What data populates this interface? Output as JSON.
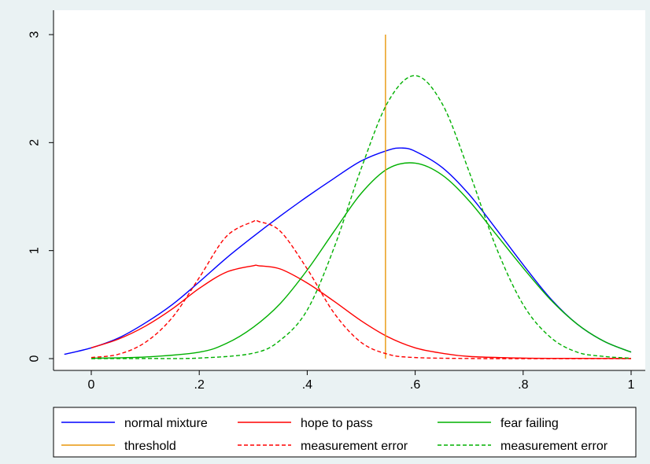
{
  "chart_data": {
    "type": "line",
    "title": "",
    "xlabel": "",
    "ylabel": "",
    "xlim": [
      -0.05,
      1.0
    ],
    "ylim": [
      0,
      3
    ],
    "x_ticks": [
      {
        "value": 0,
        "label": "0"
      },
      {
        "value": 0.2,
        "label": ".2"
      },
      {
        "value": 0.4,
        "label": ".4"
      },
      {
        "value": 0.6,
        "label": ".6"
      },
      {
        "value": 0.8,
        "label": ".8"
      },
      {
        "value": 1,
        "label": "1"
      }
    ],
    "y_ticks": [
      {
        "value": 0,
        "label": "0"
      },
      {
        "value": 1,
        "label": "1"
      },
      {
        "value": 2,
        "label": "2"
      },
      {
        "value": 3,
        "label": "3"
      }
    ],
    "grid": false,
    "legend_position": "bottom",
    "series": [
      {
        "name": "normal mixture",
        "color": "#0000ff",
        "dash": "solid",
        "x": [
          -0.05,
          0,
          0.05,
          0.1,
          0.15,
          0.2,
          0.25,
          0.3,
          0.35,
          0.4,
          0.45,
          0.5,
          0.55,
          0.575,
          0.6,
          0.65,
          0.7,
          0.75,
          0.8,
          0.85,
          0.9,
          0.95,
          1.0
        ],
        "y": [
          0.04,
          0.1,
          0.19,
          0.33,
          0.5,
          0.71,
          0.93,
          1.13,
          1.32,
          1.5,
          1.67,
          1.83,
          1.93,
          1.95,
          1.92,
          1.77,
          1.52,
          1.2,
          0.87,
          0.56,
          0.32,
          0.16,
          0.06
        ]
      },
      {
        "name": "hope to pass",
        "color": "#ff0000",
        "dash": "solid",
        "x": [
          0,
          0.05,
          0.1,
          0.15,
          0.2,
          0.25,
          0.3,
          0.31,
          0.35,
          0.4,
          0.45,
          0.5,
          0.55,
          0.6,
          0.65,
          0.7,
          0.8,
          0.9,
          1.0
        ],
        "y": [
          0.1,
          0.18,
          0.3,
          0.46,
          0.65,
          0.8,
          0.86,
          0.86,
          0.83,
          0.7,
          0.53,
          0.35,
          0.2,
          0.1,
          0.05,
          0.02,
          0.005,
          0.002,
          0.001
        ]
      },
      {
        "name": "fear failing",
        "color": "#00b000",
        "dash": "solid",
        "x": [
          0,
          0.1,
          0.2,
          0.25,
          0.3,
          0.35,
          0.4,
          0.45,
          0.5,
          0.55,
          0.6,
          0.65,
          0.7,
          0.75,
          0.8,
          0.85,
          0.9,
          0.95,
          1.0
        ],
        "y": [
          0.004,
          0.015,
          0.06,
          0.14,
          0.29,
          0.51,
          0.82,
          1.18,
          1.53,
          1.76,
          1.81,
          1.7,
          1.46,
          1.15,
          0.84,
          0.55,
          0.32,
          0.16,
          0.06
        ]
      },
      {
        "name": "threshold",
        "color": "#e8960a",
        "dash": "solid",
        "x": [
          0.545,
          0.545
        ],
        "y": [
          0,
          3
        ]
      },
      {
        "name": "measurement error",
        "color": "#ff0000",
        "dash": "dashed",
        "x": [
          0,
          0.05,
          0.1,
          0.15,
          0.2,
          0.25,
          0.3,
          0.31,
          0.35,
          0.4,
          0.45,
          0.5,
          0.55,
          0.6,
          0.7,
          0.8,
          1.0
        ],
        "y": [
          0.01,
          0.04,
          0.15,
          0.38,
          0.75,
          1.13,
          1.27,
          1.27,
          1.18,
          0.83,
          0.42,
          0.15,
          0.04,
          0.01,
          0.001,
          0.0,
          0.0
        ]
      },
      {
        "name": "measurement error",
        "color": "#00b000",
        "dash": "dashed",
        "x": [
          0,
          0.1,
          0.2,
          0.3,
          0.35,
          0.4,
          0.45,
          0.5,
          0.55,
          0.6,
          0.65,
          0.7,
          0.75,
          0.8,
          0.85,
          0.9,
          0.95,
          1.0
        ],
        "y": [
          0.0,
          0.001,
          0.005,
          0.05,
          0.17,
          0.45,
          1.03,
          1.76,
          2.38,
          2.62,
          2.36,
          1.73,
          1.03,
          0.5,
          0.2,
          0.06,
          0.02,
          0.004
        ]
      }
    ]
  }
}
